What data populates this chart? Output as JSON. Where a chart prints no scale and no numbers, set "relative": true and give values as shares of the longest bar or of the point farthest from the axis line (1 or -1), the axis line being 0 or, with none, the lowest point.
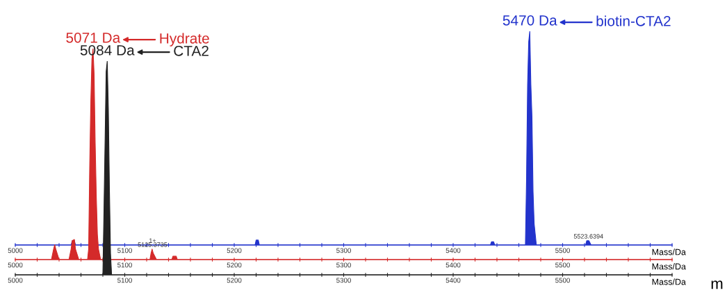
{
  "chart_data": [
    {
      "type": "area",
      "relative": true,
      "color": "#2233cc",
      "xlabel": "Mass/Da",
      "xlim": [
        5000,
        5600
      ],
      "xticks": [
        5000,
        {
          "value": 5020,
          "label": null
        },
        {
          "value": 5040,
          "label": null
        },
        {
          "value": 5060,
          "label": null
        },
        {
          "value": 5080,
          "label": null
        },
        5100,
        {
          "value": 5120,
          "label": null
        },
        {
          "value": 5140,
          "label": null
        },
        {
          "value": 5160,
          "label": null
        },
        {
          "value": 5180,
          "label": null
        },
        5200,
        {
          "value": 5220,
          "label": null
        },
        {
          "value": 5240,
          "label": null
        },
        {
          "value": 5260,
          "label": null
        },
        {
          "value": 5280,
          "label": null
        },
        5300,
        {
          "value": 5320,
          "label": null
        },
        {
          "value": 5340,
          "label": null
        },
        {
          "value": 5360,
          "label": null
        },
        {
          "value": 5380,
          "label": null
        },
        5400,
        {
          "value": 5420,
          "label": null
        },
        {
          "value": 5440,
          "label": null
        },
        {
          "value": 5460,
          "label": null
        },
        {
          "value": 5480,
          "label": null
        },
        5500,
        {
          "value": 5520,
          "label": null
        },
        {
          "value": 5540,
          "label": null
        },
        {
          "value": 5560,
          "label": null
        },
        {
          "value": 5580,
          "label": null
        },
        {
          "value": 5600,
          "label": null
        }
      ],
      "x": [
        5000,
        5051,
        5052,
        5054,
        5055,
        5219,
        5220,
        5222,
        5223,
        5434,
        5435,
        5437,
        5438,
        5466,
        5467,
        5468,
        5469,
        5470,
        5471,
        5472,
        5473,
        5474,
        5476,
        5521,
        5522,
        5524,
        5526,
        5600
      ],
      "values": [
        0,
        0,
        0.02,
        0.02,
        0,
        0,
        0.023,
        0.023,
        0,
        0,
        0.015,
        0.015,
        0,
        0,
        0.3,
        0.75,
        0.95,
        1.0,
        0.75,
        0.6,
        0.25,
        0.1,
        0,
        0,
        0.02,
        0.02,
        0,
        0
      ],
      "annotations": [
        {
          "text": "5470 Da",
          "x": 5470,
          "y": 1.0
        },
        "biotin-CTA2",
        {
          "text": "5523.6394",
          "x": 5523.6394,
          "y": 0.02
        },
        {
          "text": "1+",
          "x": 5125.3735,
          "y": 0
        }
      ]
    },
    {
      "type": "area",
      "relative": true,
      "color": "#d42a2a",
      "xlabel": "Mass/Da",
      "xlim": [
        5000,
        5600
      ],
      "xticks": [
        5000,
        {
          "value": 5020,
          "label": null
        },
        {
          "value": 5040,
          "label": null
        },
        {
          "value": 5060,
          "label": null
        },
        {
          "value": 5080,
          "label": null
        },
        5100,
        {
          "value": 5120,
          "label": null
        },
        {
          "value": 5140,
          "label": null
        },
        {
          "value": 5160,
          "label": null
        },
        {
          "value": 5180,
          "label": null
        },
        5200,
        {
          "value": 5220,
          "label": null
        },
        {
          "value": 5240,
          "label": null
        },
        {
          "value": 5260,
          "label": null
        },
        {
          "value": 5280,
          "label": null
        },
        5300,
        {
          "value": 5320,
          "label": null
        },
        {
          "value": 5340,
          "label": null
        },
        {
          "value": 5360,
          "label": null
        },
        {
          "value": 5380,
          "label": null
        },
        5400,
        {
          "value": 5420,
          "label": null
        },
        {
          "value": 5440,
          "label": null
        },
        {
          "value": 5460,
          "label": null
        },
        {
          "value": 5480,
          "label": null
        },
        5500,
        {
          "value": 5520,
          "label": null
        },
        {
          "value": 5540,
          "label": null
        },
        {
          "value": 5560,
          "label": null
        },
        {
          "value": 5580,
          "label": null
        },
        {
          "value": 5600,
          "label": null
        }
      ],
      "x": [
        5000,
        5033,
        5035,
        5036,
        5037,
        5040,
        5049,
        5051,
        5052,
        5054,
        5055,
        5058,
        5066,
        5067,
        5068,
        5069,
        5070,
        5071,
        5072,
        5073,
        5074,
        5075,
        5076,
        5078,
        5123,
        5124,
        5125,
        5126,
        5129,
        5143,
        5144,
        5147,
        5148,
        5600
      ],
      "values": [
        0,
        0,
        0.05,
        0.07,
        0.05,
        0,
        0,
        0.05,
        0.09,
        0.095,
        0.05,
        0,
        0,
        0.05,
        0.45,
        0.75,
        0.95,
        1.0,
        0.88,
        0.55,
        0.3,
        0.12,
        0.05,
        0,
        0,
        0.03,
        0.05,
        0.03,
        0,
        0,
        0.016,
        0.016,
        0,
        0
      ],
      "annotations": [
        {
          "text": "5071 Da",
          "x": 5071,
          "y": 1.0
        },
        "Hydrate",
        {
          "text": "5125.3735",
          "x": 5125.3735,
          "y": 0.05
        }
      ]
    },
    {
      "type": "area",
      "relative": true,
      "color": "#222222",
      "xlabel": "Mass/Da",
      "xlim": [
        5000,
        5600
      ],
      "xticks": [
        5000,
        {
          "value": 5020,
          "label": null
        },
        {
          "value": 5040,
          "label": null
        },
        {
          "value": 5060,
          "label": null
        },
        {
          "value": 5080,
          "label": null
        },
        5100,
        {
          "value": 5120,
          "label": null
        },
        {
          "value": 5140,
          "label": null
        },
        {
          "value": 5160,
          "label": null
        },
        {
          "value": 5180,
          "label": null
        },
        5200,
        {
          "value": 5220,
          "label": null
        },
        {
          "value": 5240,
          "label": null
        },
        {
          "value": 5260,
          "label": null
        },
        {
          "value": 5280,
          "label": null
        },
        5300,
        {
          "value": 5320,
          "label": null
        },
        {
          "value": 5340,
          "label": null
        },
        {
          "value": 5360,
          "label": null
        },
        {
          "value": 5380,
          "label": null
        },
        5400,
        {
          "value": 5420,
          "label": null
        },
        {
          "value": 5440,
          "label": null
        },
        {
          "value": 5460,
          "label": null
        },
        {
          "value": 5480,
          "label": null
        },
        5500,
        {
          "value": 5520,
          "label": null
        },
        {
          "value": 5540,
          "label": null
        },
        {
          "value": 5560,
          "label": null
        },
        {
          "value": 5580,
          "label": null
        },
        {
          "value": 5600,
          "label": null
        }
      ],
      "x": [
        5000,
        5080,
        5081,
        5082,
        5083,
        5084,
        5085,
        5086,
        5087,
        5088,
        5600
      ],
      "values": [
        0,
        0,
        0.3,
        0.62,
        0.95,
        1.0,
        0.78,
        0.4,
        0.1,
        0,
        0
      ],
      "annotations": [
        {
          "text": "5084 Da",
          "x": 5084,
          "y": 1.0
        },
        "CTA2",
        "m"
      ]
    }
  ]
}
